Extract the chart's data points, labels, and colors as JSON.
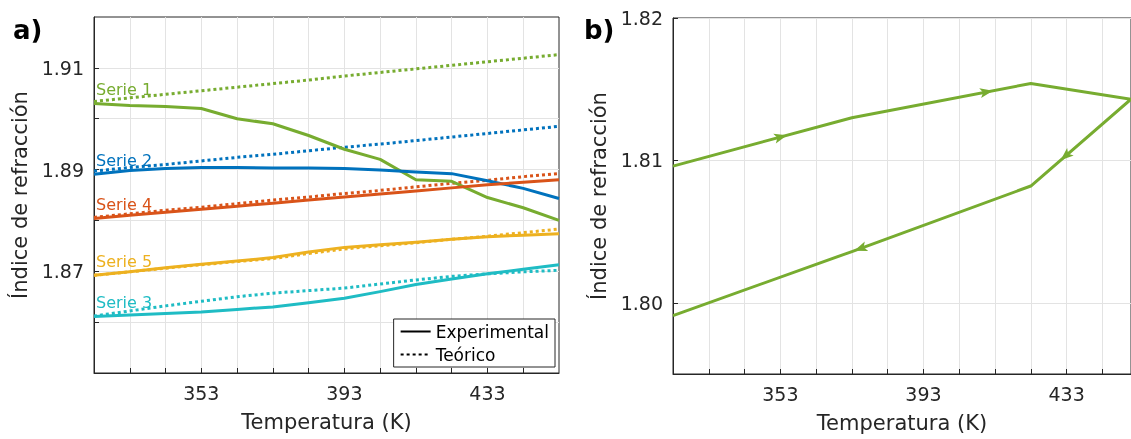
{
  "chart_data": [
    {
      "type": "line",
      "title": "a)",
      "xlabel": "Temperatura (K)",
      "ylabel": "Índice de refracción",
      "x": [
        323,
        333,
        343,
        353,
        363,
        373,
        383,
        393,
        403,
        413,
        423,
        433,
        443,
        453
      ],
      "xlim": [
        323,
        453
      ],
      "ylim": [
        1.85,
        1.92
      ],
      "xticks": [
        {
          "value": 333,
          "label": null
        },
        {
          "value": 343,
          "label": null
        },
        353,
        {
          "value": 363,
          "label": null
        },
        {
          "value": 373,
          "label": null
        },
        {
          "value": 383,
          "label": null
        },
        393,
        {
          "value": 403,
          "label": null
        },
        {
          "value": 413,
          "label": null
        },
        {
          "value": 423,
          "label": null
        },
        433,
        {
          "value": 443,
          "label": null
        }
      ],
      "yticks": [
        {
          "value": 1.86,
          "label": null
        },
        1.87,
        {
          "value": 1.88,
          "label": null
        },
        1.89,
        {
          "value": 1.9,
          "label": null
        },
        1.91
      ],
      "grid": true,
      "legend": "bottom right",
      "marker": "none",
      "series": [
        {
          "name": "Serie 1",
          "color": "#77ac30",
          "line_style": "solid",
          "values": [
            1.903,
            1.9026,
            1.9024,
            1.902,
            1.9,
            1.899,
            1.8967,
            1.894,
            1.892,
            1.888,
            1.8877,
            1.8845,
            1.8825,
            1.88
          ]
        },
        {
          "color": "#77ac30",
          "line_style": "dotted",
          "values": [
            1.9034,
            1.9041,
            1.9048,
            1.9055,
            1.9062,
            1.9069,
            1.9076,
            1.9084,
            1.9091,
            1.9098,
            1.9105,
            1.9112,
            1.9119,
            1.9126
          ]
        },
        {
          "name": "Serie 2",
          "color": "#0072bd",
          "line_style": "solid",
          "values": [
            1.8891,
            1.8898,
            1.8902,
            1.8904,
            1.8904,
            1.8903,
            1.8903,
            1.8902,
            1.8899,
            1.8895,
            1.8892,
            1.8878,
            1.8863,
            1.8843
          ]
        },
        {
          "color": "#0072bd",
          "line_style": "dotted",
          "values": [
            1.8897,
            1.8904,
            1.891,
            1.8917,
            1.8924,
            1.893,
            1.8937,
            1.8944,
            1.895,
            1.8957,
            1.8964,
            1.8971,
            1.8978,
            1.8985
          ]
        },
        {
          "name": "Serie 4",
          "color": "#d95319",
          "line_style": "solid",
          "values": [
            1.8804,
            1.881,
            1.8816,
            1.8822,
            1.8828,
            1.8834,
            1.884,
            1.8846,
            1.8852,
            1.8858,
            1.8864,
            1.887,
            1.8875,
            1.888
          ]
        },
        {
          "color": "#d95319",
          "line_style": "dotted",
          "values": [
            1.8806,
            1.8813,
            1.882,
            1.8826,
            1.8833,
            1.884,
            1.8846,
            1.8853,
            1.8859,
            1.8866,
            1.8873,
            1.8879,
            1.8886,
            1.8892
          ]
        },
        {
          "name": "Serie 5",
          "color": "#edb120",
          "line_style": "solid",
          "values": [
            1.8692,
            1.8699,
            1.8707,
            1.8714,
            1.872,
            1.8727,
            1.8738,
            1.8747,
            1.8752,
            1.8757,
            1.8763,
            1.8768,
            1.8771,
            1.8774
          ]
        },
        {
          "color": "#edb120",
          "line_style": "dotted",
          "values": [
            1.8692,
            1.8699,
            1.8706,
            1.8713,
            1.8719,
            1.8725,
            1.8735,
            1.8744,
            1.875,
            1.8756,
            1.8763,
            1.8769,
            1.8776,
            1.8783
          ]
        },
        {
          "name": "Serie 3",
          "color": "#1fbcc4",
          "line_style": "solid",
          "values": [
            1.8611,
            1.8614,
            1.8617,
            1.862,
            1.8625,
            1.863,
            1.8638,
            1.8647,
            1.866,
            1.8674,
            1.8685,
            1.8695,
            1.8704,
            1.8713
          ]
        },
        {
          "color": "#1fbcc4",
          "line_style": "dotted",
          "values": [
            1.8612,
            1.8622,
            1.8632,
            1.8641,
            1.865,
            1.8657,
            1.8662,
            1.8667,
            1.8675,
            1.8683,
            1.869,
            1.8695,
            1.8699,
            1.8702
          ]
        },
        {
          "name": "Experimental",
          "color": "#000000",
          "line_style": "solid",
          "values": [
            null,
            null,
            null,
            null,
            null,
            null,
            null,
            null,
            null,
            null,
            null,
            null,
            null,
            null
          ]
        },
        {
          "name": "Teórico",
          "color": "#000000",
          "line_style": "dotted",
          "values": [
            null,
            null,
            null,
            null,
            null,
            null,
            null,
            null,
            null,
            null,
            null,
            null,
            null,
            null
          ]
        }
      ]
    },
    {
      "type": "line",
      "title": "b)",
      "xlabel": "Temperatura (K)",
      "ylabel": "Índice de refracción",
      "xlim": [
        323,
        451
      ],
      "ylim": [
        1.795,
        1.82
      ],
      "xticks": [
        {
          "value": 333,
          "label": null
        },
        {
          "value": 343,
          "label": null
        },
        353,
        {
          "value": 363,
          "label": null
        },
        {
          "value": 373,
          "label": null
        },
        {
          "value": 383,
          "label": null
        },
        393,
        {
          "value": 403,
          "label": null
        },
        {
          "value": 413,
          "label": null
        },
        {
          "value": 423,
          "label": null
        },
        433,
        {
          "value": 443,
          "label": null
        }
      ],
      "yticks": [
        {
          "value": 1.8,
          "label": "1.80"
        },
        1.81,
        1.82
      ],
      "grid": true,
      "legend": false,
      "marker": "none",
      "series": [
        {
          "color": "#77ac30",
          "line_style": "solid",
          "x": [
            323,
            373,
            423,
            451,
            423,
            373,
            323
          ],
          "values": [
            1.8096,
            1.813,
            1.8154,
            1.8143,
            1.8082,
            1.8036,
            1.7991
          ]
        }
      ]
    }
  ]
}
